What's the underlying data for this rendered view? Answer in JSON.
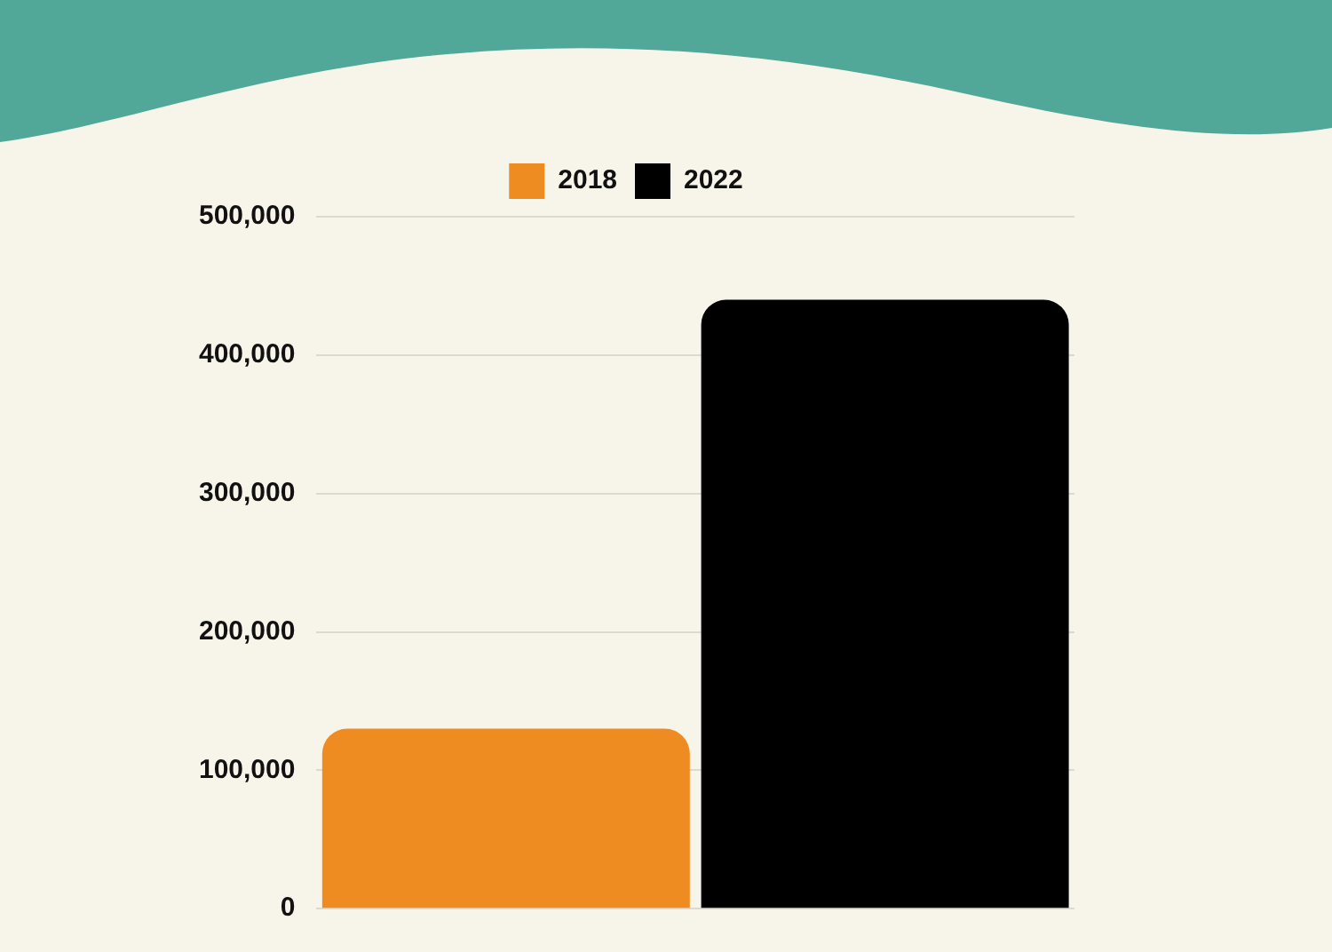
{
  "chart_data": {
    "type": "bar",
    "categories": [
      null
    ],
    "series": [
      {
        "name": "2018",
        "color": "#ee8c22",
        "values": [
          130000
        ]
      },
      {
        "name": "2022",
        "color": "#000000",
        "values": [
          440000
        ]
      }
    ],
    "ylim": [
      0,
      500000
    ],
    "yticks": [
      {
        "value": 0,
        "label": "0"
      },
      {
        "value": 100000,
        "label": "100,000"
      },
      {
        "value": 200000,
        "label": "200,000"
      },
      {
        "value": 300000,
        "label": "300,000"
      },
      {
        "value": 400000,
        "label": "400,000"
      },
      {
        "value": 500000,
        "label": "500,000"
      }
    ],
    "grid": "y",
    "legend": "top"
  }
}
